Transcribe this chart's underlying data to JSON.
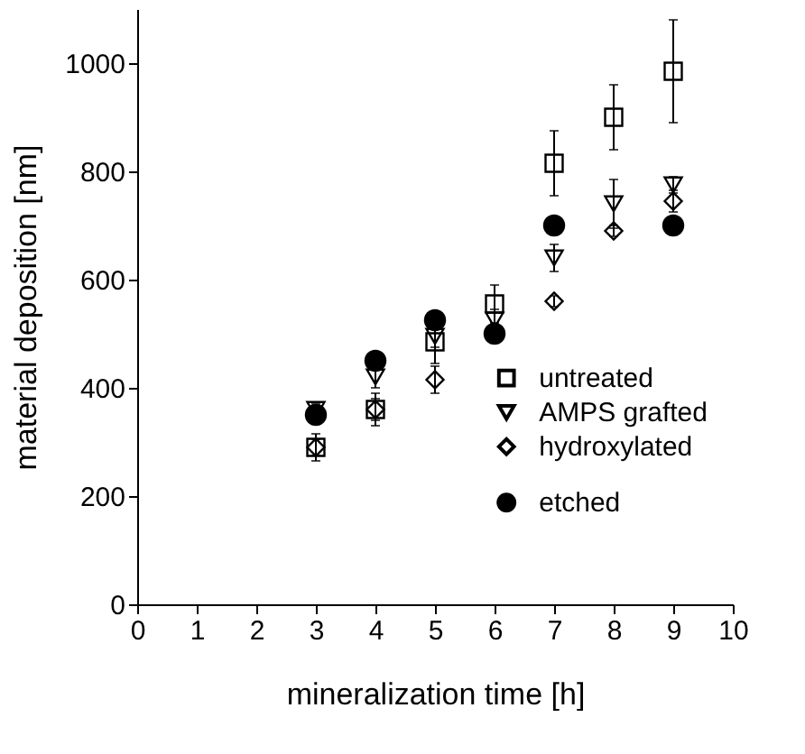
{
  "chart_data": {
    "type": "scatter",
    "xlabel": "mineralization time [h]",
    "ylabel": "material deposition [nm]",
    "x": [
      3,
      4,
      5,
      6,
      7,
      8,
      9
    ],
    "series": [
      {
        "name": "untreated",
        "color": "#000000",
        "marker": "square",
        "values": [
          290,
          360,
          485,
          555,
          815,
          900,
          985
        ],
        "errors": [
          25,
          30,
          40,
          35,
          60,
          60,
          95
        ]
      },
      {
        "name": "AMPS grafted",
        "color": "#000000",
        "marker": "triangle",
        "values": [
          360,
          420,
          495,
          525,
          640,
          740,
          775
        ],
        "errors": [
          10,
          20,
          20,
          20,
          25,
          45,
          15
        ]
      },
      {
        "name": "hydroxylated",
        "color": "#000000",
        "marker": "diamond",
        "values": [
          290,
          360,
          415,
          null,
          560,
          690,
          745
        ],
        "errors": [
          15,
          20,
          25,
          null,
          10,
          10,
          20
        ]
      },
      {
        "name": "etched",
        "color": "#000000",
        "marker": "circle",
        "values": [
          350,
          450,
          525,
          500,
          700,
          null,
          700
        ]
      }
    ],
    "xlim": [
      0,
      10
    ],
    "xticks": [
      0,
      1,
      2,
      3,
      4,
      5,
      6,
      7,
      8,
      9,
      10
    ],
    "ylim": [
      0,
      1100
    ],
    "yticks": [
      0,
      200,
      400,
      600,
      800,
      1000
    ],
    "grid": false,
    "legend": "bottom right"
  }
}
